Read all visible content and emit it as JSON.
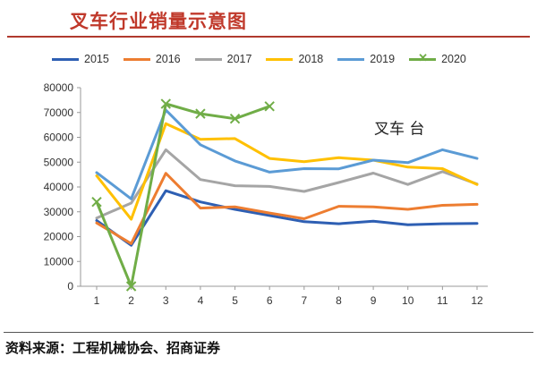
{
  "header": {
    "title": "叉车行业销量示意图"
  },
  "chart_data": {
    "type": "line",
    "annotation": "叉车 台",
    "categories": [
      "1",
      "2",
      "3",
      "4",
      "5",
      "6",
      "7",
      "8",
      "9",
      "10",
      "11",
      "12"
    ],
    "ylim": [
      0,
      80000
    ],
    "yticks": [
      "0",
      "10000",
      "20000",
      "30000",
      "40000",
      "50000",
      "60000",
      "70000",
      "80000"
    ],
    "grid": false,
    "legend_position": "top",
    "series": [
      {
        "name": "2015",
        "color": "#2e5fb3",
        "marker": "none",
        "values": [
          26500,
          16500,
          38500,
          34000,
          31000,
          28500,
          26000,
          25200,
          26200,
          24800,
          25200,
          25300
        ]
      },
      {
        "name": "2016",
        "color": "#ed7d31",
        "marker": "none",
        "values": [
          25500,
          17200,
          45500,
          31500,
          32000,
          29500,
          27200,
          32200,
          32000,
          31000,
          32600,
          33000
        ]
      },
      {
        "name": "2017",
        "color": "#a5a5a5",
        "marker": "none",
        "values": [
          27500,
          33500,
          55000,
          43000,
          40500,
          40200,
          38200,
          41800,
          45600,
          41000,
          46200,
          41200
        ]
      },
      {
        "name": "2018",
        "color": "#ffc000",
        "marker": "none",
        "values": [
          44500,
          27000,
          65500,
          59200,
          59500,
          51500,
          50200,
          51800,
          50800,
          48000,
          47400,
          41000
        ]
      },
      {
        "name": "2019",
        "color": "#5b9bd5",
        "marker": "none",
        "values": [
          45800,
          35200,
          71000,
          57000,
          50500,
          46000,
          47400,
          47300,
          50800,
          49800,
          55000,
          51500
        ]
      },
      {
        "name": "2020",
        "color": "#70ad47",
        "marker": "x",
        "values": [
          34000,
          0,
          73500,
          69500,
          67500,
          72500,
          null,
          null,
          null,
          null,
          null,
          null
        ]
      }
    ]
  },
  "footer": {
    "source": "资料来源：工程机械协会、招商证券"
  }
}
